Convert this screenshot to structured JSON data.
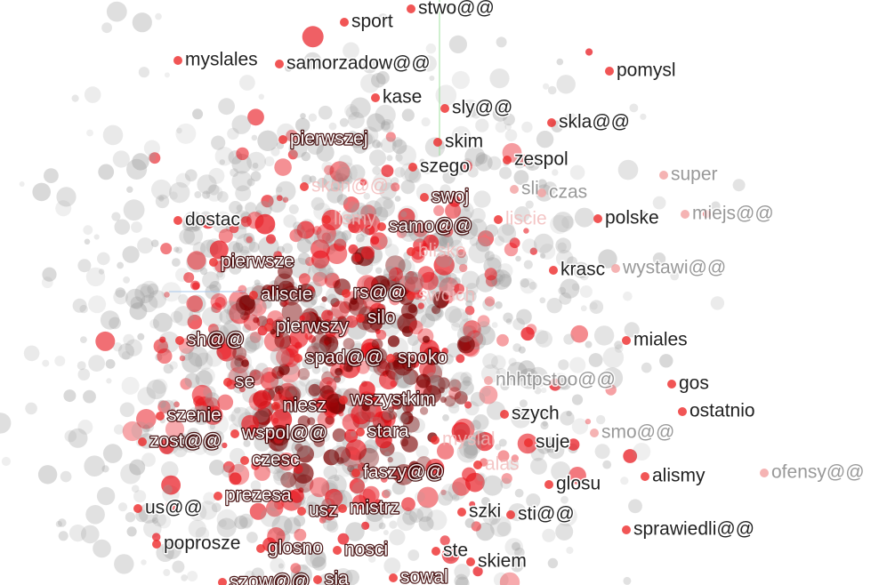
{
  "words": [
    "stwo@@",
    "sport",
    "myslales",
    "samorzadow@@",
    "pomysl",
    "kase",
    "sly@@",
    "skla@@",
    "pierwszej",
    "skim",
    "szego",
    "zespol",
    "super",
    "skon@@",
    "sli",
    "czas",
    "swoj",
    "dostac",
    "lismy",
    "samo@@",
    "liscie",
    "polske",
    "miejs@@",
    "blisko",
    "pierwsze",
    "krasc",
    "wystawi@@",
    "aliscie",
    "rs@@",
    "swoich",
    "silo",
    "pierwszy",
    "sh@@",
    "miales",
    "spad@@",
    "spoko",
    "gos",
    "se",
    "niesz",
    "wszystkim",
    "szych",
    "ostatnio",
    "szenie",
    "zost@@",
    "wspol@@",
    "stara",
    "myslal",
    "suje",
    "smo@@",
    "czesc",
    "faszy@@",
    "alas",
    "alismy",
    "ofensy@@",
    "glosu",
    "prezesa",
    "us@@",
    "usz",
    "mistrz",
    "szki",
    "sti@@",
    "sprawiedli@@",
    "poprosze",
    "glosno",
    "nosci",
    "ste",
    "skiem",
    "szow@@",
    "sia",
    "sowal",
    "nhhtpstoo@@"
  ]
}
